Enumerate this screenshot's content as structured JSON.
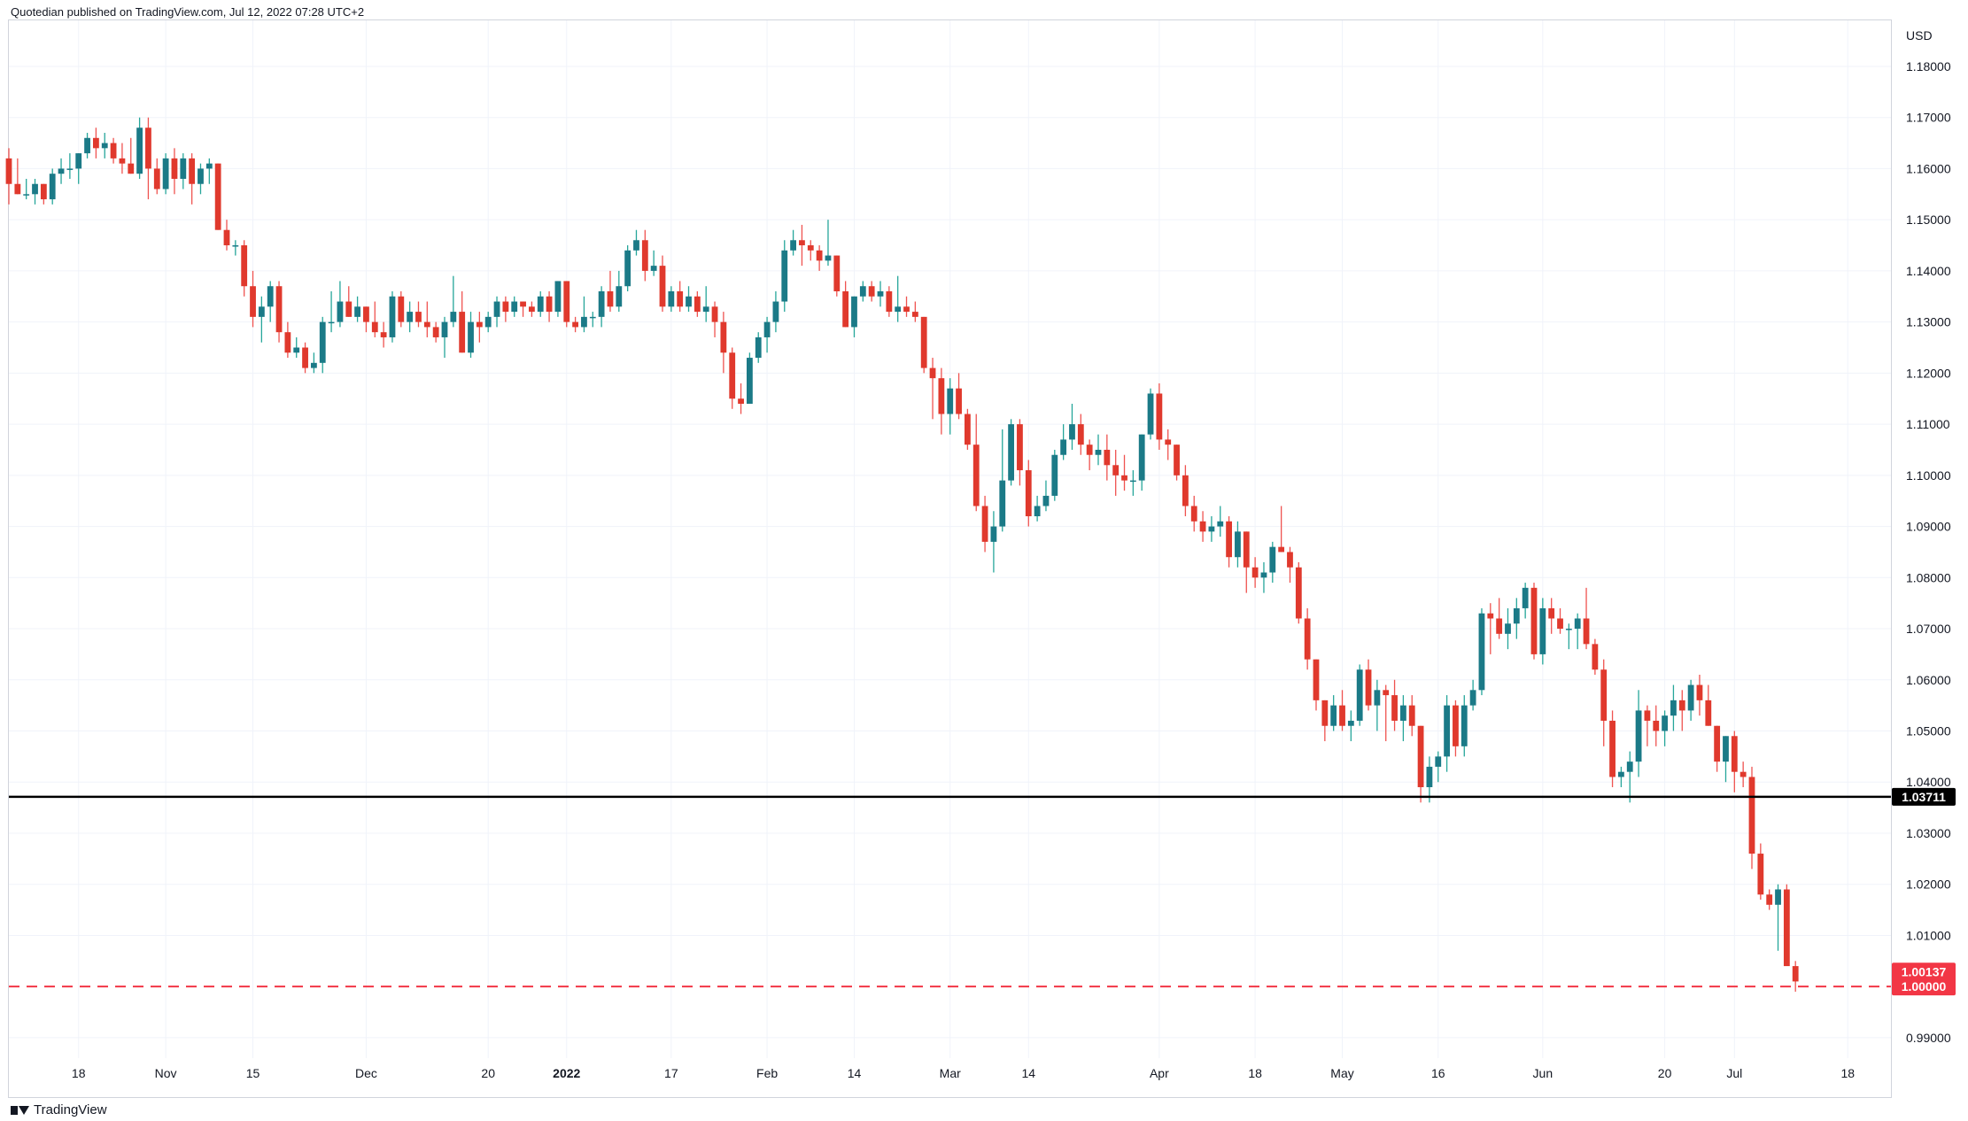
{
  "header": {
    "published": "Quotedian published on TradingView.com, Jul 12, 2022 07:28 UTC+2"
  },
  "footer": {
    "brand": "TradingView",
    "logo_icon": "tradingview-logo-icon"
  },
  "colors": {
    "up": "#26a69a",
    "upBody": "#1b7a87",
    "down": "#ef5350",
    "downBody": "#e0392d",
    "support": "#000000",
    "parity": "#f23645",
    "grid": "#f0f3fa",
    "border": "#d1d4dc"
  },
  "chart_data": {
    "type": "candlestick",
    "currency": "USD",
    "ylim": [
      0.986,
      1.189
    ],
    "y_ticks": [
      "1.18000",
      "1.17000",
      "1.16000",
      "1.15000",
      "1.14000",
      "1.13000",
      "1.12000",
      "1.11000",
      "1.10000",
      "1.09000",
      "1.08000",
      "1.07000",
      "1.06000",
      "1.05000",
      "1.04000",
      "1.03000",
      "1.02000",
      "1.01000",
      "0.99000"
    ],
    "x_labels": [
      {
        "label": "18",
        "idx": 8
      },
      {
        "label": "Nov",
        "idx": 18
      },
      {
        "label": "15",
        "idx": 28
      },
      {
        "label": "Dec",
        "idx": 41
      },
      {
        "label": "20",
        "idx": 55
      },
      {
        "label": "2022",
        "idx": 64
      },
      {
        "label": "17",
        "idx": 76
      },
      {
        "label": "Feb",
        "idx": 87
      },
      {
        "label": "14",
        "idx": 97
      },
      {
        "label": "Mar",
        "idx": 108
      },
      {
        "label": "14",
        "idx": 117
      },
      {
        "label": "Apr",
        "idx": 132
      },
      {
        "label": "18",
        "idx": 143
      },
      {
        "label": "May",
        "idx": 153
      },
      {
        "label": "16",
        "idx": 164
      },
      {
        "label": "Jun",
        "idx": 176
      },
      {
        "label": "20",
        "idx": 190
      },
      {
        "label": "Jul",
        "idx": 198
      },
      {
        "label": "18",
        "idx": 211
      }
    ],
    "horizontal_lines": [
      {
        "name": "support",
        "price": 1.03711,
        "label": "1.03711",
        "style": "solid"
      },
      {
        "name": "parity",
        "price": 1.0,
        "label": "1.00000",
        "style": "dashed"
      }
    ],
    "last_price": {
      "value": 1.00137,
      "label": "1.00137"
    },
    "candles": [
      [
        1.162,
        1.164,
        1.153,
        1.157
      ],
      [
        1.157,
        1.162,
        1.155,
        1.155
      ],
      [
        1.155,
        1.158,
        1.154,
        1.155
      ],
      [
        1.155,
        1.158,
        1.153,
        1.157
      ],
      [
        1.157,
        1.157,
        1.153,
        1.154
      ],
      [
        1.154,
        1.16,
        1.153,
        1.159
      ],
      [
        1.159,
        1.162,
        1.157,
        1.16
      ],
      [
        1.16,
        1.163,
        1.158,
        1.16
      ],
      [
        1.16,
        1.163,
        1.157,
        1.163
      ],
      [
        1.163,
        1.167,
        1.162,
        1.166
      ],
      [
        1.166,
        1.168,
        1.162,
        1.164
      ],
      [
        1.164,
        1.167,
        1.162,
        1.165
      ],
      [
        1.165,
        1.166,
        1.161,
        1.162
      ],
      [
        1.162,
        1.165,
        1.159,
        1.161
      ],
      [
        1.161,
        1.166,
        1.159,
        1.159
      ],
      [
        1.159,
        1.17,
        1.158,
        1.168
      ],
      [
        1.168,
        1.17,
        1.154,
        1.16
      ],
      [
        1.16,
        1.162,
        1.155,
        1.156
      ],
      [
        1.156,
        1.163,
        1.155,
        1.162
      ],
      [
        1.162,
        1.164,
        1.155,
        1.158
      ],
      [
        1.158,
        1.163,
        1.156,
        1.162
      ],
      [
        1.162,
        1.163,
        1.153,
        1.157
      ],
      [
        1.157,
        1.161,
        1.155,
        1.16
      ],
      [
        1.16,
        1.162,
        1.157,
        1.161
      ],
      [
        1.161,
        1.161,
        1.148,
        1.148
      ],
      [
        1.148,
        1.15,
        1.144,
        1.145
      ],
      [
        1.145,
        1.146,
        1.143,
        1.145
      ],
      [
        1.145,
        1.146,
        1.135,
        1.137
      ],
      [
        1.137,
        1.14,
        1.129,
        1.131
      ],
      [
        1.131,
        1.135,
        1.126,
        1.133
      ],
      [
        1.133,
        1.138,
        1.13,
        1.137
      ],
      [
        1.137,
        1.138,
        1.126,
        1.128
      ],
      [
        1.128,
        1.13,
        1.123,
        1.124
      ],
      [
        1.124,
        1.127,
        1.123,
        1.125
      ],
      [
        1.125,
        1.126,
        1.12,
        1.121
      ],
      [
        1.121,
        1.124,
        1.12,
        1.122
      ],
      [
        1.122,
        1.131,
        1.12,
        1.13
      ],
      [
        1.13,
        1.136,
        1.128,
        1.13
      ],
      [
        1.13,
        1.138,
        1.129,
        1.134
      ],
      [
        1.134,
        1.137,
        1.131,
        1.131
      ],
      [
        1.131,
        1.135,
        1.13,
        1.133
      ],
      [
        1.133,
        1.133,
        1.128,
        1.13
      ],
      [
        1.13,
        1.134,
        1.127,
        1.128
      ],
      [
        1.128,
        1.13,
        1.125,
        1.127
      ],
      [
        1.127,
        1.136,
        1.126,
        1.135
      ],
      [
        1.135,
        1.136,
        1.129,
        1.13
      ],
      [
        1.13,
        1.134,
        1.128,
        1.132
      ],
      [
        1.132,
        1.134,
        1.129,
        1.13
      ],
      [
        1.13,
        1.134,
        1.127,
        1.129
      ],
      [
        1.129,
        1.13,
        1.126,
        1.127
      ],
      [
        1.127,
        1.131,
        1.123,
        1.13
      ],
      [
        1.13,
        1.139,
        1.129,
        1.132
      ],
      [
        1.132,
        1.136,
        1.124,
        1.124
      ],
      [
        1.124,
        1.132,
        1.123,
        1.13
      ],
      [
        1.13,
        1.132,
        1.126,
        1.129
      ],
      [
        1.129,
        1.132,
        1.128,
        1.131
      ],
      [
        1.131,
        1.135,
        1.129,
        1.134
      ],
      [
        1.134,
        1.135,
        1.13,
        1.132
      ],
      [
        1.132,
        1.135,
        1.131,
        1.134
      ],
      [
        1.134,
        1.134,
        1.131,
        1.133
      ],
      [
        1.133,
        1.134,
        1.131,
        1.132
      ],
      [
        1.132,
        1.136,
        1.131,
        1.135
      ],
      [
        1.135,
        1.136,
        1.13,
        1.132
      ],
      [
        1.132,
        1.138,
        1.131,
        1.138
      ],
      [
        1.138,
        1.138,
        1.129,
        1.13
      ],
      [
        1.13,
        1.131,
        1.128,
        1.129
      ],
      [
        1.129,
        1.135,
        1.128,
        1.131
      ],
      [
        1.131,
        1.132,
        1.129,
        1.131
      ],
      [
        1.131,
        1.137,
        1.129,
        1.136
      ],
      [
        1.136,
        1.14,
        1.132,
        1.133
      ],
      [
        1.133,
        1.14,
        1.132,
        1.137
      ],
      [
        1.137,
        1.145,
        1.136,
        1.144
      ],
      [
        1.144,
        1.148,
        1.143,
        1.146
      ],
      [
        1.146,
        1.148,
        1.138,
        1.14
      ],
      [
        1.14,
        1.144,
        1.139,
        1.141
      ],
      [
        1.141,
        1.143,
        1.132,
        1.133
      ],
      [
        1.133,
        1.137,
        1.132,
        1.136
      ],
      [
        1.136,
        1.138,
        1.132,
        1.133
      ],
      [
        1.133,
        1.137,
        1.132,
        1.135
      ],
      [
        1.135,
        1.136,
        1.131,
        1.132
      ],
      [
        1.132,
        1.137,
        1.13,
        1.133
      ],
      [
        1.133,
        1.134,
        1.127,
        1.13
      ],
      [
        1.13,
        1.132,
        1.12,
        1.124
      ],
      [
        1.124,
        1.125,
        1.113,
        1.115
      ],
      [
        1.115,
        1.118,
        1.112,
        1.114
      ],
      [
        1.114,
        1.124,
        1.114,
        1.123
      ],
      [
        1.123,
        1.128,
        1.122,
        1.127
      ],
      [
        1.127,
        1.131,
        1.124,
        1.13
      ],
      [
        1.13,
        1.136,
        1.128,
        1.134
      ],
      [
        1.134,
        1.146,
        1.132,
        1.144
      ],
      [
        1.144,
        1.148,
        1.143,
        1.146
      ],
      [
        1.146,
        1.149,
        1.141,
        1.145
      ],
      [
        1.145,
        1.146,
        1.142,
        1.144
      ],
      [
        1.144,
        1.145,
        1.14,
        1.142
      ],
      [
        1.142,
        1.15,
        1.141,
        1.143
      ],
      [
        1.143,
        1.143,
        1.135,
        1.136
      ],
      [
        1.136,
        1.138,
        1.129,
        1.129
      ],
      [
        1.129,
        1.135,
        1.127,
        1.135
      ],
      [
        1.135,
        1.138,
        1.134,
        1.137
      ],
      [
        1.137,
        1.138,
        1.134,
        1.135
      ],
      [
        1.135,
        1.138,
        1.133,
        1.136
      ],
      [
        1.136,
        1.137,
        1.131,
        1.132
      ],
      [
        1.132,
        1.139,
        1.13,
        1.133
      ],
      [
        1.133,
        1.135,
        1.131,
        1.132
      ],
      [
        1.132,
        1.134,
        1.13,
        1.131
      ],
      [
        1.131,
        1.131,
        1.12,
        1.121
      ],
      [
        1.121,
        1.123,
        1.111,
        1.119
      ],
      [
        1.119,
        1.121,
        1.108,
        1.112
      ],
      [
        1.112,
        1.119,
        1.108,
        1.117
      ],
      [
        1.117,
        1.12,
        1.111,
        1.112
      ],
      [
        1.112,
        1.113,
        1.105,
        1.106
      ],
      [
        1.106,
        1.112,
        1.093,
        1.094
      ],
      [
        1.094,
        1.096,
        1.085,
        1.087
      ],
      [
        1.087,
        1.093,
        1.081,
        1.09
      ],
      [
        1.09,
        1.109,
        1.089,
        1.099
      ],
      [
        1.099,
        1.111,
        1.098,
        1.11
      ],
      [
        1.11,
        1.111,
        1.098,
        1.101
      ],
      [
        1.101,
        1.103,
        1.09,
        1.092
      ],
      [
        1.092,
        1.096,
        1.091,
        1.094
      ],
      [
        1.094,
        1.099,
        1.093,
        1.096
      ],
      [
        1.096,
        1.105,
        1.095,
        1.104
      ],
      [
        1.104,
        1.11,
        1.103,
        1.107
      ],
      [
        1.107,
        1.114,
        1.105,
        1.11
      ],
      [
        1.11,
        1.112,
        1.104,
        1.106
      ],
      [
        1.106,
        1.107,
        1.101,
        1.104
      ],
      [
        1.104,
        1.108,
        1.102,
        1.105
      ],
      [
        1.105,
        1.108,
        1.099,
        1.102
      ],
      [
        1.102,
        1.105,
        1.096,
        1.1
      ],
      [
        1.1,
        1.104,
        1.097,
        1.099
      ],
      [
        1.099,
        1.101,
        1.096,
        1.099
      ],
      [
        1.099,
        1.108,
        1.097,
        1.108
      ],
      [
        1.108,
        1.117,
        1.107,
        1.116
      ],
      [
        1.116,
        1.118,
        1.105,
        1.107
      ],
      [
        1.107,
        1.109,
        1.103,
        1.106
      ],
      [
        1.106,
        1.106,
        1.099,
        1.1
      ],
      [
        1.1,
        1.102,
        1.092,
        1.094
      ],
      [
        1.094,
        1.096,
        1.089,
        1.091
      ],
      [
        1.091,
        1.093,
        1.087,
        1.089
      ],
      [
        1.089,
        1.092,
        1.087,
        1.09
      ],
      [
        1.09,
        1.094,
        1.088,
        1.091
      ],
      [
        1.091,
        1.092,
        1.082,
        1.084
      ],
      [
        1.084,
        1.091,
        1.082,
        1.089
      ],
      [
        1.089,
        1.089,
        1.077,
        1.082
      ],
      [
        1.082,
        1.084,
        1.078,
        1.08
      ],
      [
        1.08,
        1.083,
        1.077,
        1.081
      ],
      [
        1.081,
        1.087,
        1.079,
        1.086
      ],
      [
        1.086,
        1.094,
        1.085,
        1.085
      ],
      [
        1.085,
        1.086,
        1.079,
        1.082
      ],
      [
        1.082,
        1.083,
        1.071,
        1.072
      ],
      [
        1.072,
        1.074,
        1.062,
        1.064
      ],
      [
        1.064,
        1.064,
        1.054,
        1.056
      ],
      [
        1.056,
        1.056,
        1.048,
        1.051
      ],
      [
        1.051,
        1.057,
        1.05,
        1.055
      ],
      [
        1.055,
        1.058,
        1.05,
        1.051
      ],
      [
        1.051,
        1.054,
        1.048,
        1.052
      ],
      [
        1.052,
        1.063,
        1.051,
        1.062
      ],
      [
        1.062,
        1.064,
        1.054,
        1.055
      ],
      [
        1.055,
        1.06,
        1.05,
        1.058
      ],
      [
        1.058,
        1.059,
        1.048,
        1.057
      ],
      [
        1.057,
        1.06,
        1.05,
        1.052
      ],
      [
        1.052,
        1.057,
        1.048,
        1.055
      ],
      [
        1.055,
        1.057,
        1.049,
        1.051
      ],
      [
        1.051,
        1.051,
        1.036,
        1.039
      ],
      [
        1.039,
        1.045,
        1.036,
        1.043
      ],
      [
        1.043,
        1.046,
        1.04,
        1.045
      ],
      [
        1.045,
        1.057,
        1.042,
        1.055
      ],
      [
        1.055,
        1.056,
        1.045,
        1.047
      ],
      [
        1.047,
        1.057,
        1.045,
        1.055
      ],
      [
        1.055,
        1.06,
        1.054,
        1.058
      ],
      [
        1.058,
        1.074,
        1.057,
        1.073
      ],
      [
        1.073,
        1.075,
        1.065,
        1.072
      ],
      [
        1.072,
        1.076,
        1.068,
        1.069
      ],
      [
        1.069,
        1.074,
        1.066,
        1.071
      ],
      [
        1.071,
        1.076,
        1.068,
        1.074
      ],
      [
        1.074,
        1.079,
        1.072,
        1.078
      ],
      [
        1.078,
        1.079,
        1.064,
        1.065
      ],
      [
        1.065,
        1.076,
        1.063,
        1.074
      ],
      [
        1.074,
        1.076,
        1.069,
        1.072
      ],
      [
        1.072,
        1.074,
        1.069,
        1.07
      ],
      [
        1.07,
        1.071,
        1.066,
        1.07
      ],
      [
        1.07,
        1.073,
        1.066,
        1.072
      ],
      [
        1.072,
        1.078,
        1.066,
        1.067
      ],
      [
        1.067,
        1.068,
        1.061,
        1.062
      ],
      [
        1.062,
        1.064,
        1.047,
        1.052
      ],
      [
        1.052,
        1.054,
        1.039,
        1.041
      ],
      [
        1.041,
        1.043,
        1.039,
        1.042
      ],
      [
        1.042,
        1.046,
        1.036,
        1.044
      ],
      [
        1.044,
        1.058,
        1.041,
        1.054
      ],
      [
        1.054,
        1.055,
        1.047,
        1.052
      ],
      [
        1.052,
        1.055,
        1.047,
        1.05
      ],
      [
        1.05,
        1.054,
        1.047,
        1.053
      ],
      [
        1.053,
        1.059,
        1.05,
        1.056
      ],
      [
        1.056,
        1.058,
        1.05,
        1.054
      ],
      [
        1.054,
        1.06,
        1.052,
        1.059
      ],
      [
        1.059,
        1.061,
        1.053,
        1.056
      ],
      [
        1.056,
        1.059,
        1.051,
        1.051
      ],
      [
        1.051,
        1.051,
        1.042,
        1.044
      ],
      [
        1.044,
        1.049,
        1.04,
        1.049
      ],
      [
        1.049,
        1.05,
        1.038,
        1.042
      ],
      [
        1.042,
        1.044,
        1.039,
        1.041
      ],
      [
        1.041,
        1.043,
        1.023,
        1.026
      ],
      [
        1.026,
        1.028,
        1.017,
        1.018
      ],
      [
        1.018,
        1.019,
        1.015,
        1.016
      ],
      [
        1.016,
        1.02,
        1.007,
        1.019
      ],
      [
        1.019,
        1.02,
        1.006,
        1.004
      ],
      [
        1.004,
        1.005,
        0.999,
        1.001
      ]
    ]
  }
}
